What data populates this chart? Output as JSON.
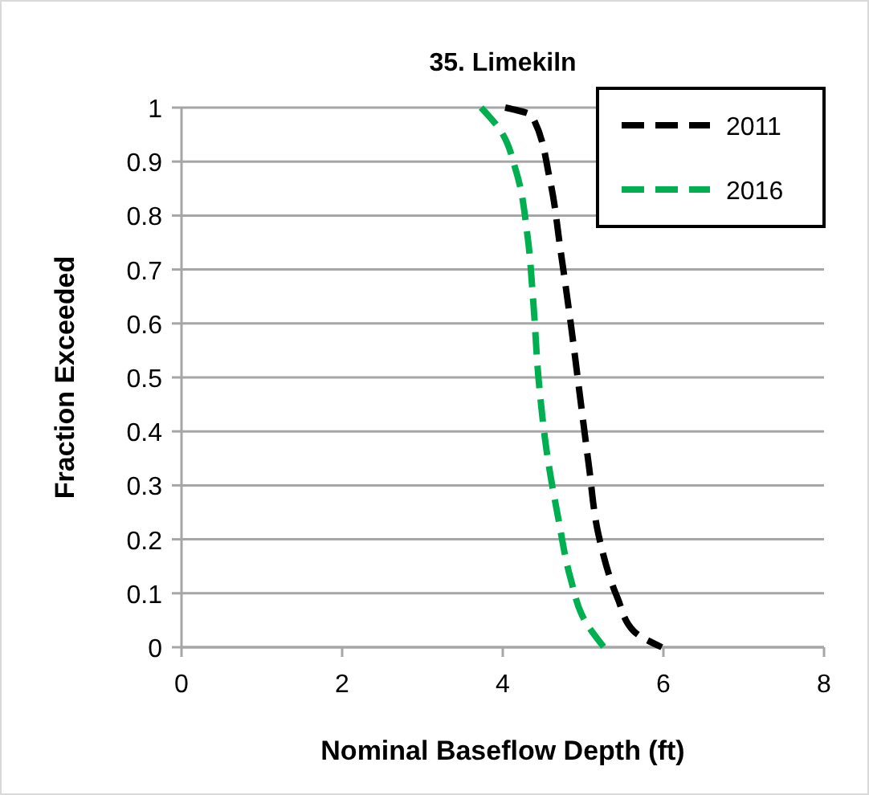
{
  "chart_data": {
    "type": "line",
    "title": "35. Limekiln",
    "xlabel": "Nominal Baseflow Depth (ft)",
    "ylabel": "Fraction Exceeded",
    "xlim": [
      0,
      8
    ],
    "xticks": [
      0,
      2,
      4,
      6,
      8
    ],
    "ylim": [
      0,
      1
    ],
    "yticks": [
      0,
      0.1,
      0.2,
      0.3,
      0.4,
      0.5,
      0.6,
      0.7,
      0.8,
      0.9,
      1
    ],
    "grid": "y",
    "legend": "top right",
    "line_style": "dashed",
    "marker": "none",
    "series": [
      {
        "name": "2011",
        "color": "#000000",
        "x": [
          4.03,
          4.36,
          4.59,
          4.72,
          4.85,
          4.96,
          5.07,
          5.19,
          5.43,
          5.63,
          5.98
        ],
        "values": [
          1,
          0.985,
          0.864,
          0.735,
          0.596,
          0.467,
          0.339,
          0.21,
          0.091,
          0.03,
          0
        ]
      },
      {
        "name": "2016",
        "color": "#00b050",
        "x": [
          3.73,
          3.96,
          4.17,
          4.31,
          4.38,
          4.45,
          4.55,
          4.69,
          4.84,
          5.02,
          5.26
        ],
        "values": [
          1,
          0.96,
          0.88,
          0.76,
          0.64,
          0.49,
          0.36,
          0.24,
          0.13,
          0.05,
          0
        ]
      }
    ]
  }
}
